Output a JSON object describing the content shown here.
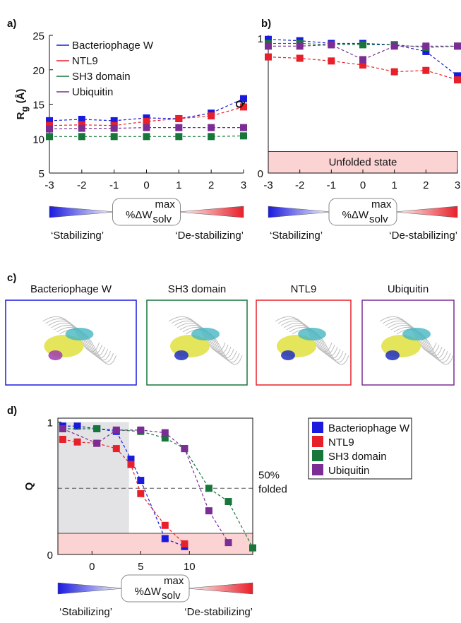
{
  "chart_data": [
    {
      "type": "line",
      "panel": "a)",
      "ylabel": {
        "main": "R",
        "sub": "g",
        "rest": " (Å)"
      },
      "x": [
        -3,
        -2,
        -1,
        0,
        1,
        2,
        3
      ],
      "xlim": [
        -3,
        3
      ],
      "xticks": [
        -3,
        -2,
        -1,
        0,
        1,
        2,
        3
      ],
      "ylim": [
        5,
        25
      ],
      "yticks": [
        5,
        10,
        15,
        20,
        25
      ],
      "legend": "upper left",
      "series": [
        {
          "name": "Bacteriophage W",
          "color": "#1a1adf",
          "values": [
            12.6,
            12.8,
            12.6,
            13.0,
            12.9,
            13.7,
            15.8
          ]
        },
        {
          "name": "NTL9",
          "color": "#e8202a",
          "values": [
            11.9,
            12.0,
            11.9,
            12.5,
            12.9,
            13.3,
            14.6
          ]
        },
        {
          "name": "SH3 domain",
          "color": "#17763a",
          "values": [
            10.3,
            10.3,
            10.3,
            10.3,
            10.3,
            10.3,
            10.4
          ]
        },
        {
          "name": "Ubiquitin",
          "color": "#7b2d95",
          "values": [
            11.4,
            11.5,
            11.5,
            11.6,
            11.6,
            11.6,
            11.6
          ]
        }
      ],
      "scale": {
        "main": "%ΔW",
        "sub": "solv",
        "sup": "max",
        "left": "‘Stabilizing’",
        "right": "‘De-stabilizing’"
      }
    },
    {
      "type": "line",
      "panel": "b)",
      "ylabel": {
        "main": "Q"
      },
      "x": [
        -3,
        -2,
        -1,
        0,
        1,
        2,
        3
      ],
      "xlim": [
        -3,
        3
      ],
      "xticks": [
        -3,
        -2,
        -1,
        0,
        1,
        2,
        3
      ],
      "ylim": [
        0,
        1.02
      ],
      "yticks": [
        0,
        1
      ],
      "band": {
        "label": "Unfolded state",
        "ylim": [
          0,
          0.16
        ],
        "color": "#fbd3d3"
      },
      "series": [
        {
          "name": "Bacteriophage W",
          "color": "#1a1adf",
          "values": [
            0.99,
            0.98,
            0.96,
            0.96,
            0.95,
            0.9,
            0.72
          ]
        },
        {
          "name": "NTL9",
          "color": "#e8202a",
          "values": [
            0.86,
            0.85,
            0.83,
            0.8,
            0.75,
            0.76,
            0.69
          ]
        },
        {
          "name": "SH3 domain",
          "color": "#17763a",
          "values": [
            0.96,
            0.96,
            0.95,
            0.95,
            0.95,
            0.93,
            0.94
          ]
        },
        {
          "name": "Ubiquitin",
          "color": "#7b2d95",
          "values": [
            0.94,
            0.94,
            0.95,
            0.84,
            0.94,
            0.94,
            0.94
          ]
        }
      ],
      "scale": {
        "main": "%ΔW",
        "sub": "solv",
        "sup": "max",
        "left": "‘Stabilizing’",
        "right": "‘De-stabilizing’"
      }
    },
    {
      "type": "line",
      "panel": "d)",
      "ylabel": {
        "main": "Q"
      },
      "box": true,
      "xlim": [
        -3.5,
        16.5
      ],
      "xticks": [
        0,
        5,
        10
      ],
      "ylim": [
        0,
        1.03
      ],
      "yticks": [
        0,
        1
      ],
      "legend": "outside right",
      "band": {
        "ylim": [
          0,
          0.16
        ],
        "color": "#fbd3d3"
      },
      "shaded": {
        "xlim": [
          -3.5,
          3.8
        ],
        "ylim": [
          0.16,
          1
        ],
        "color": "#e3e3e5"
      },
      "hline": {
        "value": 0.5,
        "label": [
          "50%",
          "folded"
        ]
      },
      "series": [
        {
          "name": "Bacteriophage W",
          "color": "#1a1adf",
          "x": [
            -3,
            -1.5,
            0.5,
            2.5,
            4,
            5,
            7.5,
            9.5
          ],
          "values": [
            0.97,
            0.97,
            0.95,
            0.93,
            0.72,
            0.56,
            0.12,
            0.06
          ]
        },
        {
          "name": "NTL9",
          "color": "#e8202a",
          "x": [
            -3,
            -1.5,
            0.5,
            2.5,
            4,
            5,
            7.5,
            9.5
          ],
          "values": [
            0.87,
            0.85,
            0.84,
            0.8,
            0.68,
            0.46,
            0.22,
            0.08
          ]
        },
        {
          "name": "SH3 domain",
          "color": "#17763a",
          "x": [
            -3,
            0.5,
            5,
            7.5,
            9.5,
            12,
            14,
            16.5
          ],
          "values": [
            0.95,
            0.95,
            0.93,
            0.88,
            0.8,
            0.5,
            0.4,
            0.05
          ]
        },
        {
          "name": "Ubiquitin",
          "color": "#7b2d95",
          "x": [
            -3,
            0.5,
            2.5,
            5,
            7.5,
            9.5,
            12,
            14
          ],
          "values": [
            0.95,
            0.84,
            0.94,
            0.94,
            0.92,
            0.8,
            0.33,
            0.09
          ]
        }
      ],
      "scale": {
        "main": "%ΔW",
        "sub": "solv",
        "sup": "max",
        "left": "‘Stabilizing’",
        "right": "‘De-stabilizing’"
      }
    }
  ],
  "structures": {
    "panel": "c)",
    "items": [
      {
        "name": "Bacteriophage W",
        "color": "#1a1adf"
      },
      {
        "name": "SH3 domain",
        "color": "#17763a"
      },
      {
        "name": "NTL9",
        "color": "#e8202a"
      },
      {
        "name": "Ubiquitin",
        "color": "#7b2d95"
      }
    ]
  }
}
